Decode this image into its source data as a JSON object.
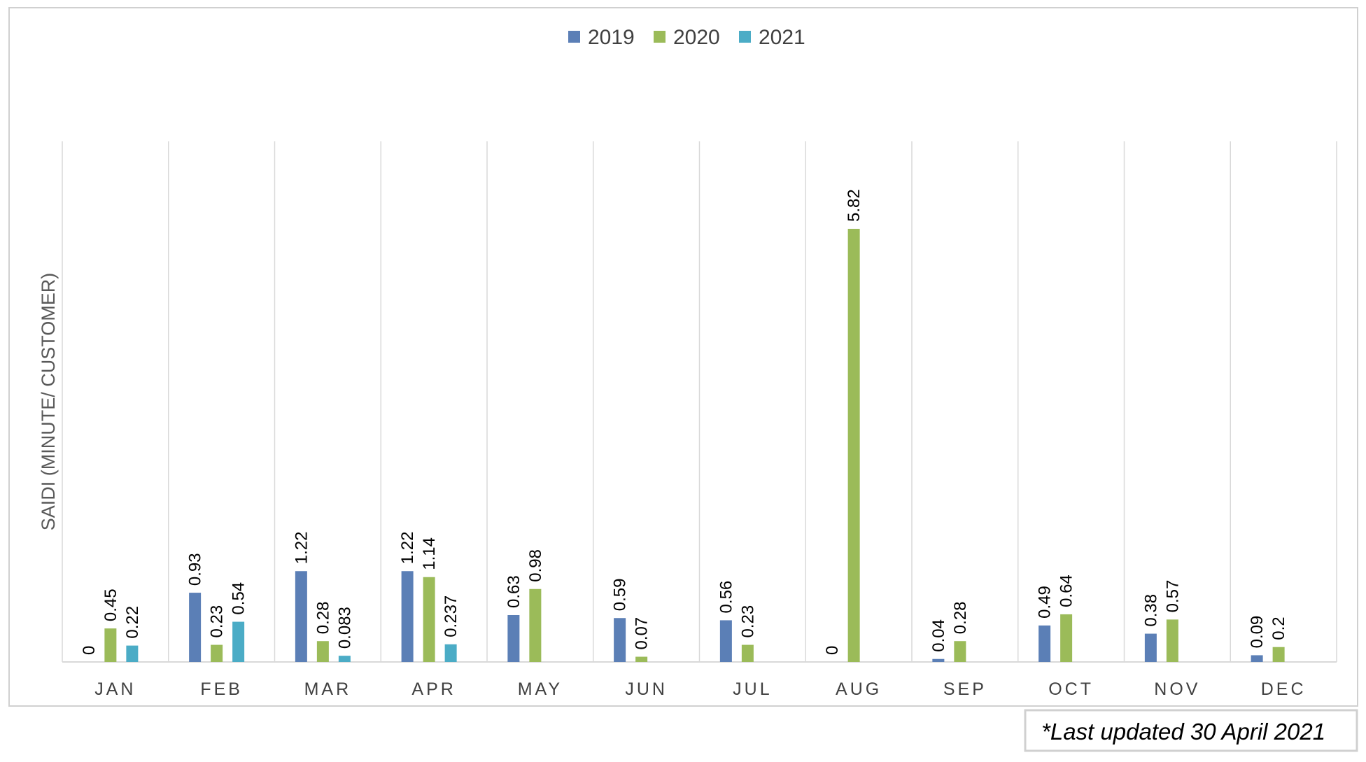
{
  "chart_data": {
    "type": "bar",
    "title": "",
    "xlabel": "",
    "ylabel": "SAIDI (MINUTE/ CUSTOMER)",
    "categories": [
      "JAN",
      "FEB",
      "MAR",
      "APR",
      "MAY",
      "JUN",
      "JUL",
      "AUG",
      "SEP",
      "OCT",
      "NOV",
      "DEC"
    ],
    "series": [
      {
        "name": "2019",
        "color": "#5B7FB6",
        "values": [
          0,
          0.93,
          1.22,
          1.22,
          0.63,
          0.59,
          0.56,
          0,
          0.04,
          0.49,
          0.38,
          0.09
        ],
        "labels": [
          "0",
          "0.93",
          "1.22",
          "1.22",
          "0.63",
          "0.59",
          "0.56",
          "0",
          "0.04",
          "0.49",
          "0.38",
          "0.09"
        ]
      },
      {
        "name": "2020",
        "color": "#9BBB59",
        "values": [
          0.45,
          0.23,
          0.28,
          1.14,
          0.98,
          0.07,
          0.23,
          5.82,
          0.28,
          0.64,
          0.57,
          0.2
        ],
        "labels": [
          "0.45",
          "0.23",
          "0.28",
          "1.14",
          "0.98",
          "0.07",
          "0.23",
          "5.82",
          "0.28",
          "0.64",
          "0.57",
          "0.2"
        ]
      },
      {
        "name": "2021",
        "color": "#4BACC6",
        "values": [
          0.22,
          0.54,
          0.083,
          0.237,
          null,
          null,
          null,
          null,
          null,
          null,
          null,
          null
        ],
        "labels": [
          "0.22",
          "0.54",
          "0.083",
          "0.237",
          null,
          null,
          null,
          null,
          null,
          null,
          null,
          null
        ]
      }
    ],
    "ylim": [
      0,
      7
    ],
    "grid": "vertical category separators",
    "legend": "top-center"
  },
  "note": "*Last updated 30 April 2021"
}
